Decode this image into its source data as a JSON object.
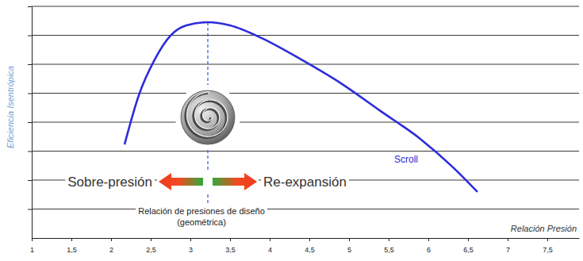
{
  "chart_data": {
    "type": "line",
    "xlabel": "Relación Presión",
    "ylabel": "Eficiencia Isentrópica",
    "x": [
      2.17,
      2.35,
      2.55,
      2.75,
      2.95,
      3.22,
      3.5,
      3.9,
      4.4,
      4.9,
      5.4,
      5.9,
      6.3,
      6.62
    ],
    "series": [
      {
        "name": "Scroll",
        "color": "#2b2bdc",
        "values": [
          3.23,
          4.93,
          6.16,
          6.99,
          7.34,
          7.45,
          7.34,
          6.9,
          6.16,
          5.34,
          4.38,
          3.42,
          2.47,
          1.59
        ]
      }
    ],
    "xlim": [
      1,
      7.9
    ],
    "ylim": [
      0,
      8
    ],
    "xticks": [
      1,
      {
        "value": 1.5,
        "label": "1,5"
      },
      2,
      {
        "value": 2.5,
        "label": "2,5"
      },
      3,
      {
        "value": 3.5,
        "label": "3,5"
      },
      4,
      {
        "value": 4.5,
        "label": "4,5"
      },
      5,
      {
        "value": 5.5,
        "label": "5,5"
      },
      6,
      {
        "value": 6.5,
        "label": "6,5"
      },
      7,
      {
        "value": 7.5,
        "label": "7,5"
      }
    ],
    "yticks": [
      1,
      2,
      3,
      4,
      5,
      6,
      7,
      8
    ],
    "grid": true,
    "tick_labels": "x",
    "design_ratio": 3.22,
    "annotations": {
      "left": "Sobre-presión",
      "right": "Re-expansión",
      "design": [
        "Relación de presiones de diseño",
        "(geométrica)"
      ]
    }
  }
}
